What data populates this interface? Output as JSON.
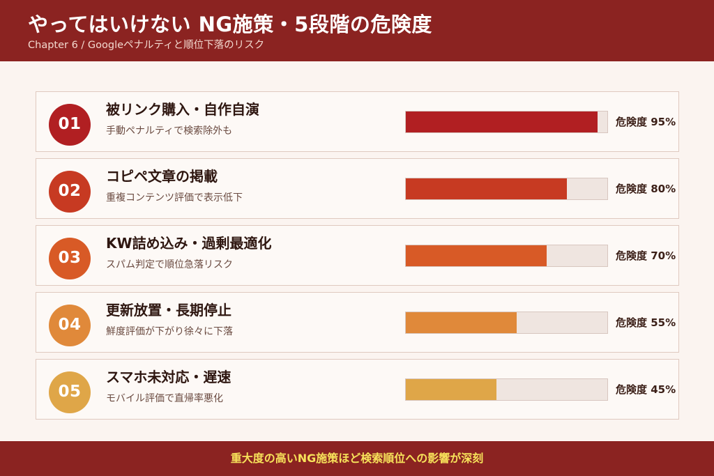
{
  "header": {
    "title": "やってはいけない NG施策・5段階の危険度",
    "subtitle": "Chapter 6 / Googleペナルティと順位下落のリスク"
  },
  "items": [
    {
      "number": "01",
      "title": "被リンク購入・自作自演",
      "desc": "手動ペナルティで検索除外も",
      "risk_label": "危険度 95%",
      "risk": 95,
      "color": "#b11f22"
    },
    {
      "number": "02",
      "title": "コピペ文章の掲載",
      "desc": "重複コンテンツ評価で表示低下",
      "risk_label": "危険度 80%",
      "risk": 80,
      "color": "#c73a22"
    },
    {
      "number": "03",
      "title": "KW詰め込み・過剰最適化",
      "desc": "スパム判定で順位急落リスク",
      "risk_label": "危険度 70%",
      "risk": 70,
      "color": "#d85a26"
    },
    {
      "number": "04",
      "title": "更新放置・長期停止",
      "desc": "鮮度評価が下がり徐々に下落",
      "risk_label": "危険度 55%",
      "risk": 55,
      "color": "#e0893a"
    },
    {
      "number": "05",
      "title": "スマホ未対応・遅速",
      "desc": "モバイル評価で直帰率悪化",
      "risk_label": "危険度 45%",
      "risk": 45,
      "color": "#dfa648"
    }
  ],
  "footer": {
    "text": "重大度の高いNG施策ほど検索順位への影響が深刻"
  }
}
